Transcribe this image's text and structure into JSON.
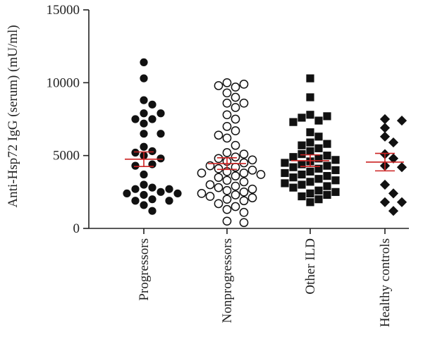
{
  "chart_data": {
    "type": "scatter",
    "title": "",
    "ylabel": "Anti-Hsp72 IgG (serum) (mU/ml)",
    "xlabel": "",
    "ylim": [
      0,
      15000
    ],
    "yticks": [
      0,
      5000,
      10000,
      15000
    ],
    "categories": [
      "Progressors",
      "Nonprogressors",
      "Other ILD",
      "Healthy controls"
    ],
    "mean_line_color": "#cc2222",
    "series": [
      {
        "category": "Progressors",
        "marker": "filled-circle",
        "values": [
          11400,
          10300,
          8800,
          8500,
          7900,
          7900,
          7500,
          7500,
          7200,
          6500,
          6500,
          5600,
          5300,
          5200,
          5000,
          4800,
          4400,
          4300,
          3700,
          3000,
          2800,
          2700,
          2700,
          2500,
          2400,
          2400,
          2300,
          2000,
          1900,
          1900,
          1600,
          1200
        ],
        "mean": 4750,
        "sem_low": 4250,
        "sem_high": 5250
      },
      {
        "category": "Nonprogressors",
        "marker": "open-circle",
        "values": [
          10000,
          9900,
          9800,
          9700,
          9300,
          9000,
          8600,
          8600,
          8300,
          7800,
          7500,
          7000,
          6700,
          6400,
          6200,
          5700,
          5200,
          5100,
          4900,
          4800,
          4700,
          4600,
          4500,
          4300,
          4200,
          4100,
          4000,
          3900,
          3800,
          3800,
          3700,
          3600,
          3500,
          3300,
          3200,
          3000,
          2900,
          2800,
          2700,
          2600,
          2500,
          2400,
          2300,
          2200,
          2100,
          2000,
          1900,
          1700,
          1500,
          1300,
          1100,
          500,
          400
        ],
        "mean": 4450,
        "sem_low": 4050,
        "sem_high": 4850
      },
      {
        "category": "Other ILD",
        "marker": "filled-square",
        "values": [
          10300,
          9000,
          7800,
          7700,
          7600,
          7400,
          7300,
          6600,
          6300,
          5900,
          5800,
          5700,
          5500,
          5300,
          5100,
          5000,
          4900,
          4800,
          4700,
          4600,
          4500,
          4400,
          4300,
          4200,
          4100,
          4000,
          3900,
          3800,
          3700,
          3600,
          3500,
          3400,
          3300,
          3200,
          3100,
          3000,
          2900,
          2800,
          2600,
          2500,
          2400,
          2300,
          2200,
          2000,
          1800
        ],
        "mean": 4650,
        "sem_low": 4250,
        "sem_high": 5050
      },
      {
        "category": "Healthy controls",
        "marker": "filled-diamond",
        "values": [
          7500,
          7400,
          6900,
          6300,
          5900,
          5100,
          4800,
          4300,
          4200,
          3000,
          2400,
          1800,
          1800,
          1200
        ],
        "mean": 4550,
        "sem_low": 3950,
        "sem_high": 5150
      }
    ]
  }
}
